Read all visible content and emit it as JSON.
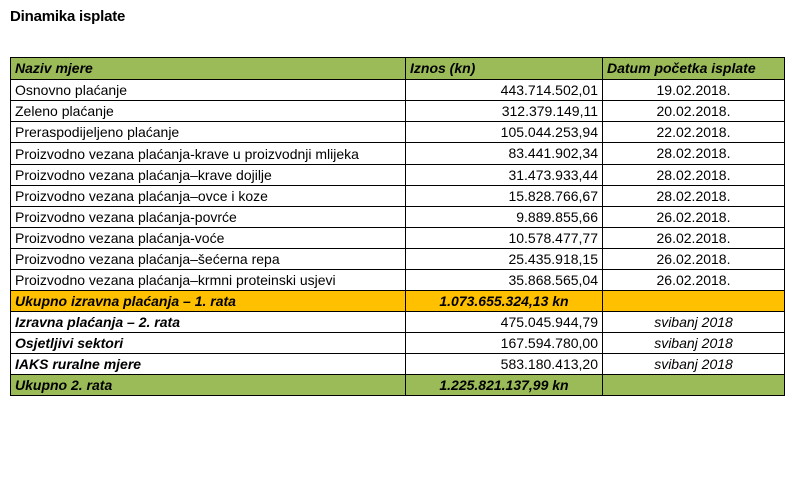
{
  "title": "Dinamika isplate",
  "table": {
    "headers": {
      "name": "Naziv mjere",
      "amount": "Iznos (kn)",
      "date": "Datum početka isplate"
    },
    "rows": [
      {
        "name": "Osnovno plaćanje",
        "amount": "443.714.502,01",
        "date": "19.02.2018."
      },
      {
        "name": "Zeleno plaćanje",
        "amount": "312.379.149,11",
        "date": "20.02.2018."
      },
      {
        "name": "Preraspodijeljeno plaćanje",
        "amount": "105.044.253,94",
        "date": "22.02.2018."
      },
      {
        "name": "Proizvodno vezana plaćanja-krave u proizvodnji mlijeka",
        "amount": "83.441.902,34",
        "date": "28.02.2018."
      },
      {
        "name": "Proizvodno vezana plaćanja–krave dojilje",
        "amount": "31.473.933,44",
        "date": "28.02.2018."
      },
      {
        "name": "Proizvodno vezana plaćanja–ovce i koze",
        "amount": "15.828.766,67",
        "date": "28.02.2018."
      },
      {
        "name": "Proizvodno vezana plaćanja-povrće",
        "amount": "9.889.855,66",
        "date": "26.02.2018."
      },
      {
        "name": "Proizvodno vezana plaćanja-voće",
        "amount": "10.578.477,77",
        "date": "26.02.2018."
      },
      {
        "name": "Proizvodno vezana plaćanja–šećerna repa",
        "amount": "25.435.918,15",
        "date": "26.02.2018."
      },
      {
        "name": "Proizvodno vezana plaćanja–krmni proteinski usjevi",
        "amount": "35.868.565,04",
        "date": "26.02.2018."
      }
    ],
    "subtotal_1": {
      "name": "Ukupno izravna plaćanja – 1. rata",
      "amount": "1.073.655.324,13 kn",
      "date": ""
    },
    "rows_2": [
      {
        "name": "Izravna plaćanja – 2. rata",
        "amount": "475.045.944,79",
        "date": "svibanj 2018"
      },
      {
        "name": "Osjetljivi sektori",
        "amount": "167.594.780,00",
        "date": "svibanj 2018"
      },
      {
        "name": "IAKS ruralne mjere",
        "amount": "583.180.413,20",
        "date": "svibanj 2018"
      }
    ],
    "total_2": {
      "name": "Ukupno 2. rata",
      "amount": "1.225.821.137,99 kn",
      "date": ""
    }
  },
  "colors": {
    "header_green": "#9bbb59",
    "subtotal_orange": "#ffc000"
  }
}
